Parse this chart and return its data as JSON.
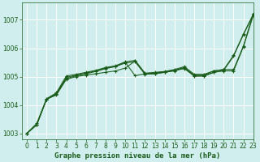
{
  "background_color": "#d0eeed",
  "grid_color": "#ffffff",
  "line_color": "#1a5c1a",
  "xlabel": "Graphe pression niveau de la mer (hPa)",
  "xlabel_fontsize": 6.5,
  "tick_fontsize": 5.5,
  "xlim": [
    -0.5,
    23
  ],
  "ylim": [
    1002.8,
    1007.6
  ],
  "yticks": [
    1003,
    1004,
    1005,
    1006,
    1007
  ],
  "xticks": [
    0,
    1,
    2,
    3,
    4,
    5,
    6,
    7,
    8,
    9,
    10,
    11,
    12,
    13,
    14,
    15,
    16,
    17,
    18,
    19,
    20,
    21,
    22,
    23
  ],
  "series": [
    {
      "y": [
        1003.0,
        1003.3,
        1004.2,
        1004.35,
        1004.9,
        1005.0,
        1005.05,
        1005.1,
        1005.15,
        1005.2,
        1005.3,
        1005.55,
        1005.1,
        1005.1,
        1005.15,
        1005.2,
        1005.3,
        1005.05,
        1005.05,
        1005.2,
        1005.25,
        1005.75,
        1006.5,
        1007.2
      ],
      "marker": "+"
    },
    {
      "y": [
        1003.0,
        1003.3,
        1004.2,
        1004.38,
        1004.93,
        1005.03,
        1005.1,
        1005.18,
        1005.28,
        1005.35,
        1005.48,
        1005.52,
        1005.08,
        1005.1,
        1005.15,
        1005.22,
        1005.32,
        1005.02,
        1005.02,
        1005.15,
        1005.22,
        1005.72,
        1006.48,
        1007.18
      ],
      "marker": "+"
    },
    {
      "y": [
        1003.0,
        1003.3,
        1004.2,
        1004.4,
        1004.97,
        1005.05,
        1005.12,
        1005.2,
        1005.3,
        1005.37,
        1005.5,
        1005.03,
        1005.1,
        1005.12,
        1005.17,
        1005.22,
        1005.28,
        1005.02,
        1005.02,
        1005.15,
        1005.2,
        1005.2,
        1006.05,
        1007.15
      ],
      "marker": "+"
    },
    {
      "y": [
        1003.0,
        1003.35,
        1004.22,
        1004.43,
        1005.02,
        1005.08,
        1005.15,
        1005.22,
        1005.32,
        1005.38,
        1005.52,
        1005.57,
        1005.12,
        1005.15,
        1005.18,
        1005.25,
        1005.35,
        1005.08,
        1005.08,
        1005.2,
        1005.25,
        1005.25,
        1006.08,
        1007.22
      ],
      "marker": "+"
    }
  ],
  "linewidth": 0.75,
  "markersize": 2.5,
  "markeredgewidth": 0.8
}
